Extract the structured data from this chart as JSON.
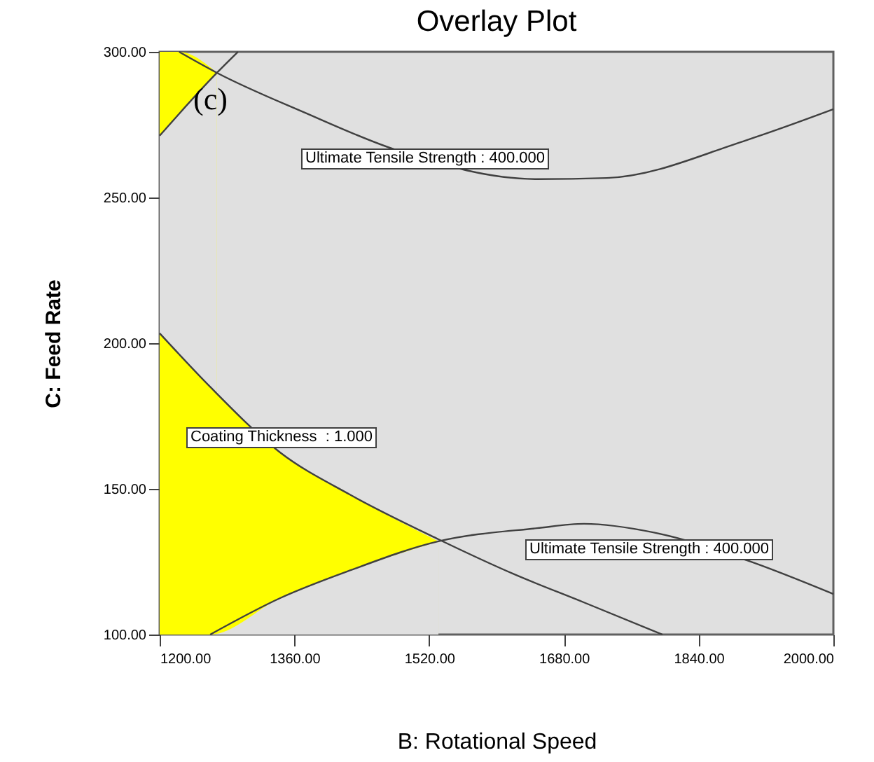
{
  "chart_data": {
    "type": "line",
    "title": "Overlay Plot",
    "xlabel": "B: Rotational Speed",
    "ylabel": "C: Feed Rate",
    "xlim": [
      1200,
      2000
    ],
    "ylim": [
      100,
      300
    ],
    "xticks": [
      {
        "value": 1200,
        "label": "1200.00"
      },
      {
        "value": 1360,
        "label": "1360.00"
      },
      {
        "value": 1520,
        "label": "1520.00"
      },
      {
        "value": 1680,
        "label": "1680.00"
      },
      {
        "value": 1840,
        "label": "1840.00"
      },
      {
        "value": 2000,
        "label": "2000.00"
      }
    ],
    "yticks": [
      {
        "value": 100,
        "label": "100.00"
      },
      {
        "value": 150,
        "label": "150.00"
      },
      {
        "value": 200,
        "label": "200.00"
      },
      {
        "value": 250,
        "label": "250.00"
      },
      {
        "value": 300,
        "label": "300.00"
      }
    ],
    "grid": false,
    "marker": "none",
    "line_style": "solid",
    "series": [
      {
        "type": "area",
        "color": "#ffff00",
        "x": [
          1200,
          1223,
          1268
        ],
        "values": [
          300,
          300,
          292.8
        ]
      },
      {
        "type": "area",
        "color": "#e0e0e0",
        "x": [
          1200,
          1223,
          1268
        ],
        "values": [
          271.2,
          278.5,
          292.8
        ]
      },
      {
        "type": "area",
        "color": "#ffff00",
        "x": [
          1200,
          1260,
          1343,
          1426,
          1531
        ],
        "values": [
          203.4,
          185,
          162.5,
          148,
          132
        ]
      },
      {
        "type": "area",
        "color": "#e0e0e0",
        "x": [
          1200,
          1260,
          1343,
          1426,
          1531
        ],
        "values": [
          100,
          100,
          112.5,
          122,
          132
        ]
      },
      {
        "color": "#404040",
        "x": [
          1200,
          1260,
          1343,
          1426,
          1531,
          1621,
          1704,
          1797
        ],
        "values": [
          203.4,
          185,
          162.5,
          148,
          132.7,
          120.7,
          111,
          100
        ]
      },
      {
        "color": "#404040",
        "x": [
          1260,
          1343,
          1426,
          1531,
          1648,
          1704,
          1787,
          1897,
          2000
        ],
        "values": [
          100,
          112.5,
          122,
          132,
          136.5,
          138,
          135,
          125.5,
          113.9
        ]
      },
      {
        "color": "#404040",
        "x": [
          1223,
          1268,
          1371,
          1481,
          1648,
          1731,
          1897,
          2000
        ],
        "values": [
          300,
          292.8,
          279.3,
          266.3,
          256.3,
          256.7,
          269.7,
          280.3
        ]
      },
      {
        "color": "#404040",
        "x": [
          1200,
          1268,
          1293
        ],
        "values": [
          271.2,
          292.8,
          300
        ]
      }
    ],
    "annotations": [
      "Ultimate Tensile Strength : 400.000",
      "Coating Thickness  : 1.000",
      "Ultimate Tensile Strength : 400.000",
      "(c)"
    ]
  }
}
